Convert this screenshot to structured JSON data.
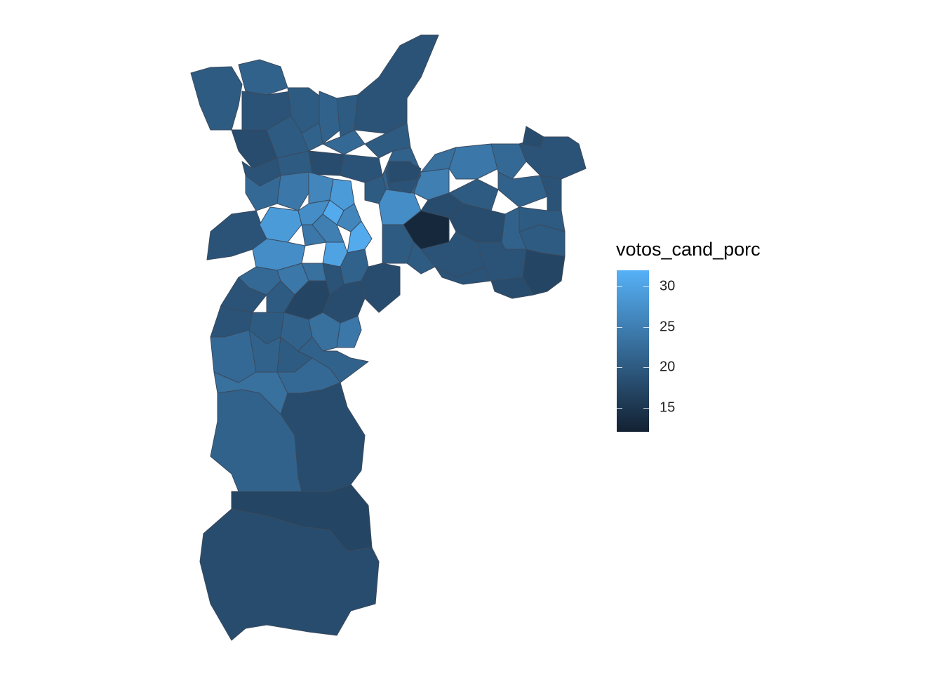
{
  "legend": {
    "title": "votos_cand_porc",
    "min": 12,
    "max": 32,
    "ticks": [
      {
        "value": 15,
        "label": "15"
      },
      {
        "value": 20,
        "label": "20"
      },
      {
        "value": 25,
        "label": "25"
      },
      {
        "value": 30,
        "label": "30"
      }
    ],
    "color_low": "#132132",
    "color_high": "#56B1F7"
  },
  "map": {
    "border_color": "#3a4a5e",
    "region_values": [
      20,
      21,
      19,
      20,
      21,
      20,
      19,
      18,
      20,
      21,
      22,
      20,
      19,
      20,
      18,
      19,
      21,
      20,
      22,
      19,
      24,
      26,
      29,
      31,
      29,
      27,
      26,
      25,
      24,
      27,
      31,
      30,
      27,
      25,
      24,
      23,
      22,
      19,
      18,
      20,
      13,
      19,
      18,
      20,
      21,
      19,
      18,
      19,
      20,
      21,
      20,
      19,
      17,
      18,
      19,
      20,
      21,
      22,
      24,
      23,
      19,
      18,
      19,
      20,
      17,
      18,
      19,
      20,
      21,
      23,
      24,
      22,
      21,
      20,
      21,
      23,
      22,
      21,
      18,
      17,
      18,
      18,
      12
    ]
  }
}
